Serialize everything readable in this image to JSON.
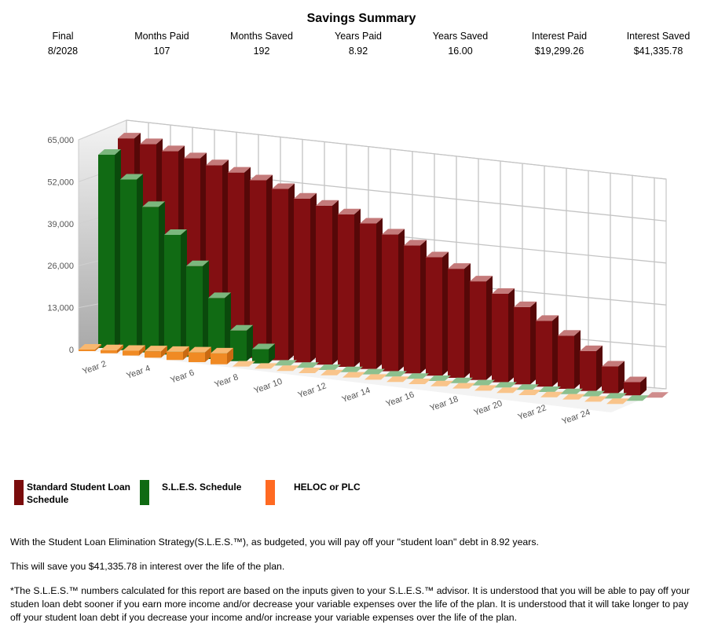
{
  "summary": {
    "title": "Savings Summary",
    "columns": [
      {
        "label": "Final",
        "value": "8/2028"
      },
      {
        "label": "Months Paid",
        "value": "107"
      },
      {
        "label": "Months Saved",
        "value": "192"
      },
      {
        "label": "Years Paid",
        "value": "8.92"
      },
      {
        "label": "Years Saved",
        "value": "16.00"
      },
      {
        "label": "Interest Paid",
        "value": "$19,299.26"
      },
      {
        "label": "Interest Saved",
        "value": "$41,335.78"
      }
    ]
  },
  "chart_data": {
    "type": "bar",
    "style": "3d-clustered-depth",
    "title": "",
    "xlabel": "",
    "ylabel": "",
    "ylim": [
      0,
      65000
    ],
    "yticks": [
      "0",
      "13,000",
      "26,000",
      "39,000",
      "52,000",
      "65,000"
    ],
    "ytick_values": [
      0,
      13000,
      26000,
      39000,
      52000,
      65000
    ],
    "grid": true,
    "legend": "bottom-left",
    "categories": [
      "Year 1",
      "Year 2",
      "Year 3",
      "Year 4",
      "Year 5",
      "Year 6",
      "Year 7",
      "Year 8",
      "Year 9",
      "Year 10",
      "Year 11",
      "Year 12",
      "Year 13",
      "Year 14",
      "Year 15",
      "Year 16",
      "Year 17",
      "Year 18",
      "Year 19",
      "Year 20",
      "Year 21",
      "Year 22",
      "Year 23",
      "Year 24",
      "Year 25"
    ],
    "xtick_labels": [
      "",
      "Year 2",
      "",
      "Year 4",
      "",
      "Year 6",
      "",
      "Year 8",
      "",
      "Year 10",
      "",
      "Year 12",
      "",
      "Year 14",
      "",
      "Year 16",
      "",
      "Year 18",
      "",
      "Year 20",
      "",
      "Year 22",
      "",
      "Year 24",
      ""
    ],
    "series": [
      {
        "name": "Standard Student Loan Schedule",
        "color": "#830f12",
        "values": [
          64000,
          62900,
          61400,
          59900,
          58400,
          56800,
          55100,
          53100,
          50800,
          49300,
          47300,
          45100,
          42400,
          39700,
          36700,
          33800,
          30600,
          27400,
          24000,
          20400,
          16500,
          12400,
          8300,
          4100,
          0
        ]
      },
      {
        "name": "S.L.E.S. Schedule",
        "color": "#116b14",
        "values": [
          59900,
          52900,
          45100,
          37100,
          28100,
          18900,
          9500,
          4400,
          0,
          0,
          0,
          0,
          0,
          0,
          0,
          0,
          0,
          0,
          0,
          0,
          0,
          0,
          0,
          0,
          0
        ]
      },
      {
        "name": "HELOC or PLC",
        "color": "#f08a24",
        "values": [
          500,
          1000,
          1500,
          2000,
          2500,
          3000,
          3400,
          0,
          0,
          0,
          0,
          0,
          0,
          0,
          0,
          0,
          0,
          0,
          0,
          0,
          0,
          0,
          0,
          0,
          0
        ]
      }
    ]
  },
  "legend": [
    {
      "label": "Standard Student Loan Schedule",
      "color": "#7a0c0c"
    },
    {
      "label": "S.L.E.S. Schedule",
      "color": "#0f6a12"
    },
    {
      "label": "HELOC or PLC",
      "color": "#ff6a22"
    }
  ],
  "notes": {
    "line1": "With the Student Loan Elimination Strategy(S.L.E.S.™), as budgeted, you will pay off your \"student loan\" debt in 8.92 years.",
    "line2": "This will save you $41,335.78 in interest over the life of the plan.",
    "disclaimer": "*The S.L.E.S.™ numbers calculated for this report are based on the inputs given to your S.L.E.S.™ advisor. It is understood that you will be able to pay off your studen loan debt sooner if you earn more income and/or decrease your variable expenses over the life of the plan. It is understood that it will take longer to pay off your student loan debt if you decrease your income and/or increase your variable expenses over the life of the plan."
  }
}
